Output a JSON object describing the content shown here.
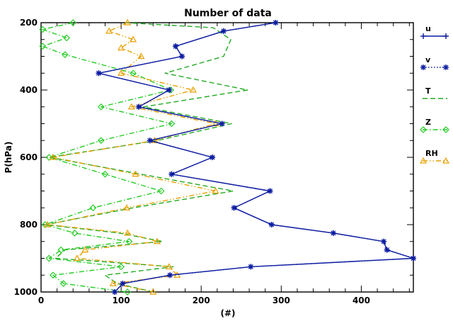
{
  "chart_data": {
    "type": "line",
    "title": "Number of data",
    "xlabel": "(#)",
    "ylabel": "P(hPa)",
    "xlim": [
      0,
      465
    ],
    "ylim": [
      1000,
      200
    ],
    "x_ticks": [
      0,
      100,
      200,
      300,
      400
    ],
    "y_ticks": [
      200,
      400,
      600,
      800,
      1000
    ],
    "grid": false,
    "legend_position": "right",
    "series": [
      {
        "name": "u",
        "color": "#0a1aa0",
        "line_style": "solid",
        "marker": "plus",
        "points": [
          [
            293,
            200
          ],
          [
            228,
            225
          ],
          [
            168,
            270
          ],
          [
            176,
            300
          ],
          [
            72,
            350
          ],
          [
            160,
            400
          ],
          [
            122,
            450
          ],
          [
            226,
            500
          ],
          [
            136,
            550
          ],
          [
            214,
            600
          ],
          [
            163,
            650
          ],
          [
            286,
            700
          ],
          [
            241,
            750
          ],
          [
            288,
            800
          ],
          [
            365,
            825
          ],
          [
            428,
            850
          ],
          [
            432,
            875
          ],
          [
            465,
            900
          ],
          [
            262,
            925
          ],
          [
            161,
            950
          ],
          [
            102,
            975
          ],
          [
            92,
            1000
          ]
        ]
      },
      {
        "name": "v",
        "color": "#0a1aa0",
        "line_style": "dotted",
        "marker": "asterisk",
        "points": [
          [
            293,
            200
          ],
          [
            228,
            225
          ],
          [
            168,
            270
          ],
          [
            176,
            300
          ],
          [
            72,
            350
          ],
          [
            160,
            400
          ],
          [
            122,
            450
          ],
          [
            226,
            500
          ],
          [
            136,
            550
          ],
          [
            214,
            600
          ],
          [
            163,
            650
          ],
          [
            286,
            700
          ],
          [
            241,
            750
          ],
          [
            288,
            800
          ],
          [
            365,
            825
          ],
          [
            428,
            850
          ],
          [
            432,
            875
          ],
          [
            465,
            900
          ],
          [
            262,
            925
          ],
          [
            161,
            950
          ],
          [
            102,
            975
          ],
          [
            92,
            1000
          ]
        ]
      },
      {
        "name": "T",
        "color": "#22aa22",
        "line_style": "dashed",
        "marker": "none",
        "points": [
          [
            105,
            200
          ],
          [
            215,
            215
          ],
          [
            237,
            250
          ],
          [
            228,
            300
          ],
          [
            155,
            350
          ],
          [
            258,
            400
          ],
          [
            128,
            450
          ],
          [
            238,
            500
          ],
          [
            145,
            550
          ],
          [
            10,
            600
          ],
          [
            125,
            650
          ],
          [
            240,
            700
          ],
          [
            115,
            750
          ],
          [
            5,
            800
          ],
          [
            98,
            825
          ],
          [
            152,
            850
          ],
          [
            30,
            875
          ],
          [
            18,
            900
          ],
          [
            165,
            925
          ],
          [
            80,
            950
          ],
          [
            95,
            975
          ],
          [
            140,
            1000
          ]
        ]
      },
      {
        "name": "Z",
        "color": "#22cc22",
        "line_style": "dashdot",
        "marker": "diamond",
        "points": [
          [
            40,
            200
          ],
          [
            2,
            220
          ],
          [
            32,
            245
          ],
          [
            2,
            270
          ],
          [
            30,
            295
          ],
          [
            115,
            350
          ],
          [
            162,
            400
          ],
          [
            75,
            450
          ],
          [
            163,
            500
          ],
          [
            75,
            550
          ],
          [
            10,
            600
          ],
          [
            80,
            650
          ],
          [
            150,
            700
          ],
          [
            65,
            750
          ],
          [
            5,
            800
          ],
          [
            42,
            825
          ],
          [
            110,
            850
          ],
          [
            25,
            875
          ],
          [
            10,
            900
          ],
          [
            100,
            925
          ],
          [
            15,
            950
          ],
          [
            28,
            975
          ],
          [
            108,
            1000
          ]
        ]
      },
      {
        "name": "RH",
        "color": "#e8a000",
        "line_style": "dashdotdot",
        "marker": "triangle",
        "points": [
          [
            108,
            200
          ],
          [
            85,
            225
          ],
          [
            115,
            250
          ],
          [
            100,
            275
          ],
          [
            125,
            300
          ],
          [
            100,
            350
          ],
          [
            190,
            400
          ],
          [
            113,
            450
          ],
          [
            218,
            500
          ],
          [
            142,
            550
          ],
          [
            15,
            600
          ],
          [
            118,
            650
          ],
          [
            218,
            700
          ],
          [
            107,
            750
          ],
          [
            8,
            800
          ],
          [
            108,
            825
          ],
          [
            145,
            850
          ],
          [
            55,
            875
          ],
          [
            45,
            900
          ],
          [
            160,
            925
          ],
          [
            170,
            950
          ],
          [
            90,
            975
          ],
          [
            140,
            1000
          ]
        ]
      }
    ]
  }
}
